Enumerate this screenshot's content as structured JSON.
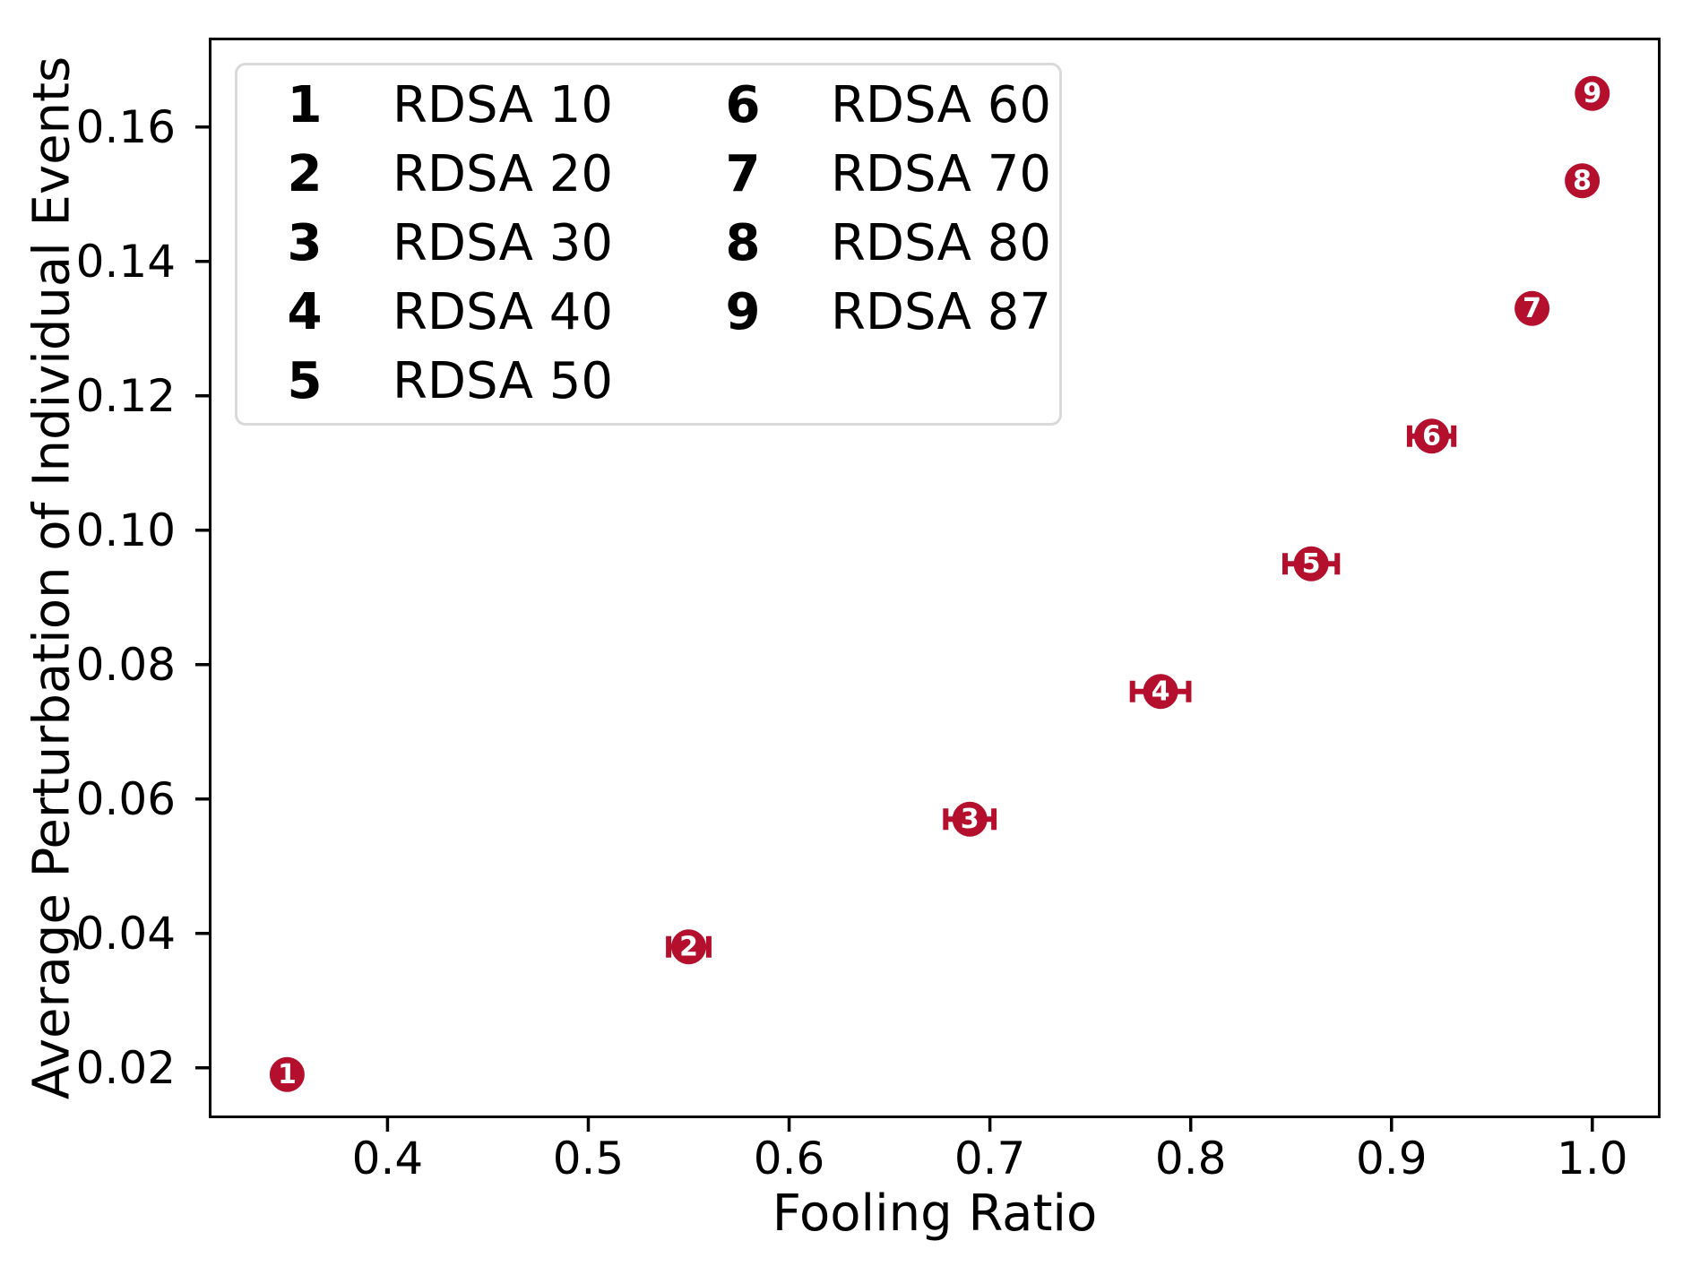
{
  "chart_data": {
    "type": "scatter",
    "title": "",
    "xlabel": "Fooling Ratio",
    "ylabel": "Average Perturbation of Individual Events",
    "xlim": [
      0.311,
      1.034
    ],
    "ylim": [
      0.0125,
      0.1733
    ],
    "grid": false,
    "legend_position": "upper left",
    "marker_color": "#b50f2e",
    "marker_text_color": "#ffffff",
    "axis_color": "#000000",
    "legend_border_color": "#d9d9d9",
    "x_ticks": [
      0.4,
      0.5,
      0.6,
      0.7,
      0.8,
      0.9,
      1.0
    ],
    "x_tick_labels": [
      "0.4",
      "0.5",
      "0.6",
      "0.7",
      "0.8",
      "0.9",
      "1.0"
    ],
    "y_ticks": [
      0.02,
      0.04,
      0.06,
      0.08,
      0.1,
      0.12,
      0.14,
      0.16
    ],
    "y_tick_labels": [
      "0.02",
      "0.04",
      "0.06",
      "0.08",
      "0.10",
      "0.12",
      "0.14",
      "0.16"
    ],
    "points": [
      {
        "id": "1",
        "label": "RDSA 10",
        "x": 0.35,
        "y": 0.019,
        "xerr": 0
      },
      {
        "id": "2",
        "label": "RDSA 20",
        "x": 0.55,
        "y": 0.038,
        "xerr": 0.01
      },
      {
        "id": "3",
        "label": "RDSA 30",
        "x": 0.69,
        "y": 0.057,
        "xerr": 0.012
      },
      {
        "id": "4",
        "label": "RDSA 40",
        "x": 0.785,
        "y": 0.076,
        "xerr": 0.014
      },
      {
        "id": "5",
        "label": "RDSA 50",
        "x": 0.86,
        "y": 0.095,
        "xerr": 0.013
      },
      {
        "id": "6",
        "label": "RDSA 60",
        "x": 0.92,
        "y": 0.114,
        "xerr": 0.011
      },
      {
        "id": "7",
        "label": "RDSA 70",
        "x": 0.97,
        "y": 0.133,
        "xerr": 0
      },
      {
        "id": "8",
        "label": "RDSA 80",
        "x": 0.995,
        "y": 0.152,
        "xerr": 0
      },
      {
        "id": "9",
        "label": "RDSA 87",
        "x": 1.0,
        "y": 0.165,
        "xerr": 0
      }
    ],
    "legend": {
      "columns": [
        [
          {
            "key": "1",
            "label": "RDSA 10"
          },
          {
            "key": "2",
            "label": "RDSA 20"
          },
          {
            "key": "3",
            "label": "RDSA 30"
          },
          {
            "key": "4",
            "label": "RDSA 40"
          },
          {
            "key": "5",
            "label": "RDSA 50"
          }
        ],
        [
          {
            "key": "6",
            "label": "RDSA 60"
          },
          {
            "key": "7",
            "label": "RDSA 70"
          },
          {
            "key": "8",
            "label": "RDSA 80"
          },
          {
            "key": "9",
            "label": "RDSA 87"
          }
        ]
      ]
    }
  }
}
